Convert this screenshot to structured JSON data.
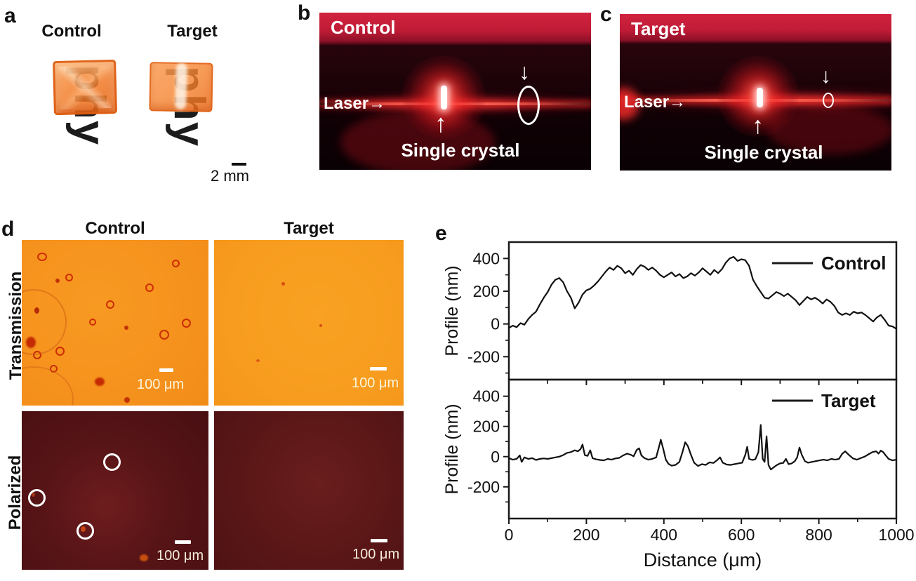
{
  "figure": {
    "panels": {
      "a": {
        "label": "a",
        "control_label": "Control",
        "target_label": "Target",
        "background_text": "phy",
        "scale_bar_label": "2 mm"
      },
      "b": {
        "label": "b",
        "title": "Control",
        "laser_label": "Laser→",
        "up_arrow": "↑",
        "down_arrow": "↓",
        "crystal_label": "Single crystal"
      },
      "c": {
        "label": "c",
        "title": "Target",
        "laser_label": "Laser→",
        "up_arrow": "↑",
        "down_arrow": "↓",
        "crystal_label": "Single crystal"
      },
      "d": {
        "label": "d",
        "columns": [
          "Control",
          "Target"
        ],
        "rows": [
          "Transmission",
          "Polarized"
        ],
        "scale_bar_label": "100 μm"
      },
      "e": {
        "label": "e"
      }
    }
  },
  "chart_data": [
    {
      "type": "line",
      "legend": "Control",
      "ylabel": "Profile (nm)",
      "xlabel": "",
      "xlim": [
        0,
        1000
      ],
      "ylim": [
        -340,
        500
      ],
      "yticks": [
        400,
        200,
        0,
        -200
      ],
      "xticks": [
        0,
        200,
        400,
        600,
        800,
        1000
      ],
      "y_minor": [
        300,
        100,
        -100,
        -300
      ],
      "x_minor": [
        100,
        300,
        500,
        700,
        900
      ],
      "show_x_labels": false,
      "line_color": "#111111",
      "points": [
        [
          0,
          -25
        ],
        [
          10,
          -10
        ],
        [
          20,
          -20
        ],
        [
          30,
          5
        ],
        [
          40,
          -5
        ],
        [
          50,
          30
        ],
        [
          60,
          55
        ],
        [
          70,
          75
        ],
        [
          80,
          120
        ],
        [
          90,
          160
        ],
        [
          100,
          195
        ],
        [
          110,
          240
        ],
        [
          120,
          270
        ],
        [
          130,
          280
        ],
        [
          140,
          255
        ],
        [
          150,
          200
        ],
        [
          160,
          160
        ],
        [
          170,
          95
        ],
        [
          180,
          130
        ],
        [
          190,
          180
        ],
        [
          200,
          205
        ],
        [
          210,
          215
        ],
        [
          220,
          235
        ],
        [
          230,
          260
        ],
        [
          240,
          290
        ],
        [
          250,
          320
        ],
        [
          260,
          345
        ],
        [
          270,
          330
        ],
        [
          280,
          355
        ],
        [
          290,
          340
        ],
        [
          300,
          310
        ],
        [
          310,
          325
        ],
        [
          320,
          300
        ],
        [
          330,
          335
        ],
        [
          340,
          360
        ],
        [
          350,
          350
        ],
        [
          360,
          330
        ],
        [
          370,
          345
        ],
        [
          380,
          325
        ],
        [
          390,
          300
        ],
        [
          400,
          285
        ],
        [
          410,
          300
        ],
        [
          420,
          315
        ],
        [
          430,
          290
        ],
        [
          440,
          305
        ],
        [
          450,
          280
        ],
        [
          460,
          290
        ],
        [
          470,
          310
        ],
        [
          480,
          295
        ],
        [
          490,
          315
        ],
        [
          500,
          340
        ],
        [
          510,
          320
        ],
        [
          520,
          300
        ],
        [
          530,
          330
        ],
        [
          540,
          310
        ],
        [
          550,
          335
        ],
        [
          560,
          375
        ],
        [
          570,
          400
        ],
        [
          580,
          410
        ],
        [
          590,
          385
        ],
        [
          600,
          395
        ],
        [
          610,
          390
        ],
        [
          620,
          355
        ],
        [
          630,
          270
        ],
        [
          640,
          230
        ],
        [
          650,
          195
        ],
        [
          660,
          160
        ],
        [
          670,
          155
        ],
        [
          680,
          175
        ],
        [
          690,
          195
        ],
        [
          700,
          185
        ],
        [
          710,
          170
        ],
        [
          720,
          185
        ],
        [
          730,
          165
        ],
        [
          740,
          145
        ],
        [
          750,
          115
        ],
        [
          760,
          140
        ],
        [
          770,
          165
        ],
        [
          780,
          150
        ],
        [
          790,
          160
        ],
        [
          800,
          145
        ],
        [
          810,
          125
        ],
        [
          820,
          150
        ],
        [
          830,
          135
        ],
        [
          840,
          110
        ],
        [
          850,
          70
        ],
        [
          860,
          55
        ],
        [
          870,
          65
        ],
        [
          880,
          55
        ],
        [
          890,
          75
        ],
        [
          900,
          65
        ],
        [
          910,
          70
        ],
        [
          920,
          55
        ],
        [
          930,
          35
        ],
        [
          940,
          15
        ],
        [
          950,
          40
        ],
        [
          960,
          55
        ],
        [
          970,
          25
        ],
        [
          980,
          -10
        ],
        [
          990,
          -15
        ],
        [
          1000,
          -30
        ]
      ]
    },
    {
      "type": "line",
      "legend": "Target",
      "ylabel": "Profile (nm)",
      "xlabel": "Distance (μm)",
      "xlim": [
        0,
        1000
      ],
      "ylim": [
        -410,
        510
      ],
      "yticks": [
        400,
        200,
        0,
        -200
      ],
      "xticks": [
        0,
        200,
        400,
        600,
        800,
        1000
      ],
      "y_minor": [
        300,
        100,
        -100,
        -300
      ],
      "x_minor": [
        100,
        300,
        500,
        700,
        900
      ],
      "show_x_labels": true,
      "line_color": "#111111",
      "points": [
        [
          0,
          -10
        ],
        [
          10,
          -20
        ],
        [
          20,
          -15
        ],
        [
          28,
          8
        ],
        [
          33,
          -35
        ],
        [
          40,
          -5
        ],
        [
          50,
          -15
        ],
        [
          60,
          -10
        ],
        [
          70,
          -22
        ],
        [
          80,
          -15
        ],
        [
          90,
          -12
        ],
        [
          100,
          -15
        ],
        [
          110,
          -10
        ],
        [
          120,
          -5
        ],
        [
          130,
          0
        ],
        [
          140,
          10
        ],
        [
          150,
          25
        ],
        [
          160,
          30
        ],
        [
          170,
          42
        ],
        [
          178,
          35
        ],
        [
          185,
          50
        ],
        [
          190,
          80
        ],
        [
          196,
          10
        ],
        [
          203,
          5
        ],
        [
          210,
          42
        ],
        [
          216,
          -10
        ],
        [
          225,
          -18
        ],
        [
          235,
          -22
        ],
        [
          245,
          -25
        ],
        [
          255,
          -15
        ],
        [
          265,
          -20
        ],
        [
          275,
          -12
        ],
        [
          285,
          -8
        ],
        [
          295,
          8
        ],
        [
          305,
          20
        ],
        [
          315,
          12
        ],
        [
          322,
          2
        ],
        [
          330,
          45
        ],
        [
          336,
          55
        ],
        [
          342,
          8
        ],
        [
          350,
          -10
        ],
        [
          360,
          -20
        ],
        [
          370,
          -15
        ],
        [
          380,
          -5
        ],
        [
          387,
          60
        ],
        [
          392,
          112
        ],
        [
          398,
          55
        ],
        [
          405,
          -20
        ],
        [
          412,
          -48
        ],
        [
          420,
          -60
        ],
        [
          430,
          -55
        ],
        [
          440,
          -35
        ],
        [
          448,
          30
        ],
        [
          455,
          95
        ],
        [
          462,
          70
        ],
        [
          470,
          12
        ],
        [
          478,
          -40
        ],
        [
          488,
          -62
        ],
        [
          498,
          -50
        ],
        [
          508,
          -55
        ],
        [
          518,
          -38
        ],
        [
          528,
          -42
        ],
        [
          538,
          -22
        ],
        [
          545,
          -5
        ],
        [
          552,
          -40
        ],
        [
          562,
          -52
        ],
        [
          572,
          -55
        ],
        [
          582,
          -50
        ],
        [
          592,
          -45
        ],
        [
          602,
          -40
        ],
        [
          610,
          10
        ],
        [
          615,
          65
        ],
        [
          620,
          -15
        ],
        [
          628,
          -22
        ],
        [
          636,
          -18
        ],
        [
          644,
          30
        ],
        [
          650,
          210
        ],
        [
          655,
          -15
        ],
        [
          660,
          -35
        ],
        [
          665,
          135
        ],
        [
          670,
          -55
        ],
        [
          676,
          -85
        ],
        [
          684,
          -70
        ],
        [
          692,
          -55
        ],
        [
          700,
          -45
        ],
        [
          708,
          -42
        ],
        [
          715,
          -15
        ],
        [
          722,
          -50
        ],
        [
          730,
          -45
        ],
        [
          738,
          -30
        ],
        [
          744,
          -5
        ],
        [
          750,
          60
        ],
        [
          756,
          12
        ],
        [
          764,
          -30
        ],
        [
          772,
          -40
        ],
        [
          782,
          -35
        ],
        [
          792,
          -30
        ],
        [
          802,
          -25
        ],
        [
          812,
          -20
        ],
        [
          822,
          -25
        ],
        [
          832,
          -15
        ],
        [
          842,
          -20
        ],
        [
          852,
          -15
        ],
        [
          860,
          18
        ],
        [
          868,
          35
        ],
        [
          878,
          10
        ],
        [
          888,
          -12
        ],
        [
          898,
          -20
        ],
        [
          908,
          -10
        ],
        [
          918,
          0
        ],
        [
          928,
          15
        ],
        [
          938,
          30
        ],
        [
          948,
          35
        ],
        [
          954,
          20
        ],
        [
          960,
          40
        ],
        [
          966,
          30
        ],
        [
          972,
          10
        ],
        [
          980,
          -15
        ],
        [
          990,
          -25
        ],
        [
          1000,
          -20
        ]
      ]
    }
  ]
}
